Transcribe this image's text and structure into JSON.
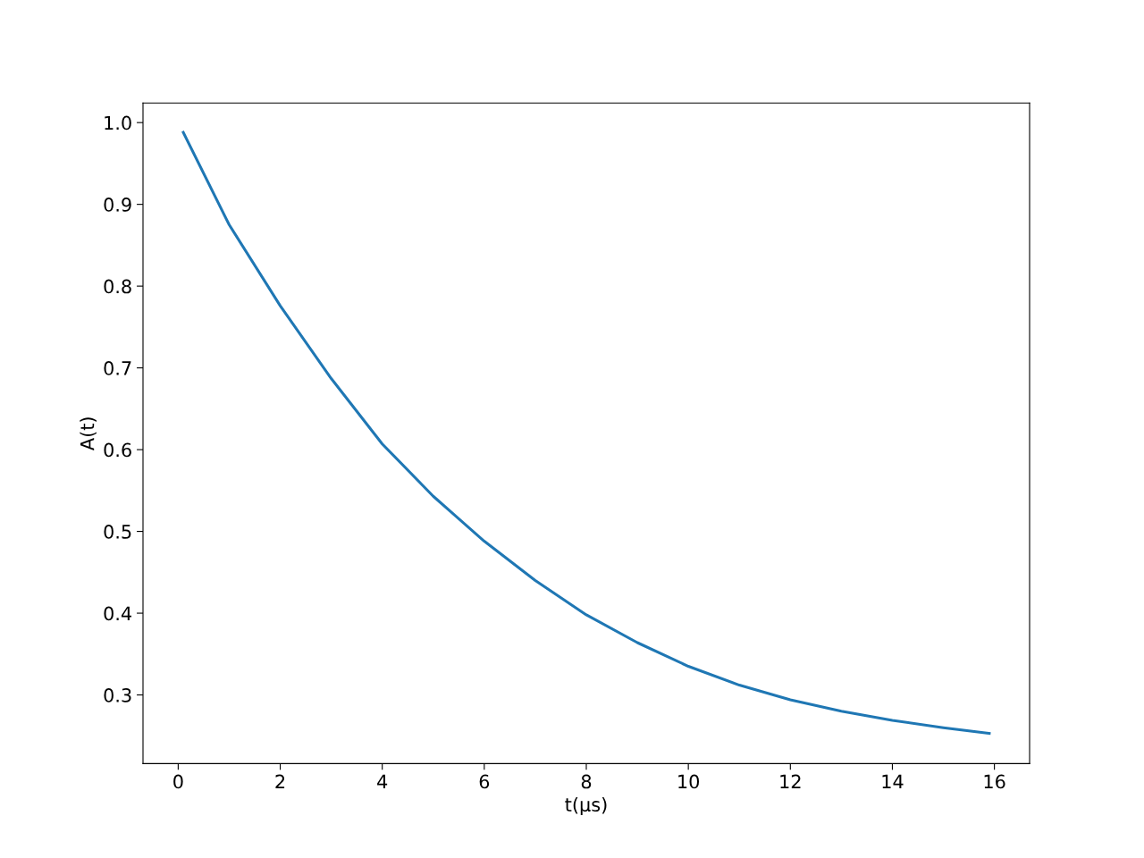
{
  "chart_data": {
    "type": "line",
    "xlabel": "t(μs)",
    "ylabel": "A(t)",
    "x": [
      0.1,
      1,
      2,
      3,
      4,
      5,
      6,
      7,
      8,
      9,
      10,
      11,
      12,
      13,
      14,
      15,
      15.9
    ],
    "series": [
      {
        "color": "#1f77b4",
        "values": [
          0.988,
          0.875,
          0.776,
          0.687,
          0.607,
          0.543,
          0.488,
          0.44,
          0.398,
          0.364,
          0.335,
          0.312,
          0.294,
          0.28,
          0.269,
          0.26,
          0.253
        ]
      }
    ],
    "xlim": [
      -0.69,
      16.69
    ],
    "xticks": [
      0,
      2,
      4,
      6,
      8,
      10,
      12,
      14,
      16
    ],
    "ylim": [
      0.216,
      1.024
    ],
    "yticks": [
      0.3,
      0.4,
      0.5,
      0.6,
      0.7,
      0.8,
      0.9,
      {
        "value": 1.0,
        "label": "1.0"
      }
    ],
    "grid": false,
    "legend": false
  }
}
